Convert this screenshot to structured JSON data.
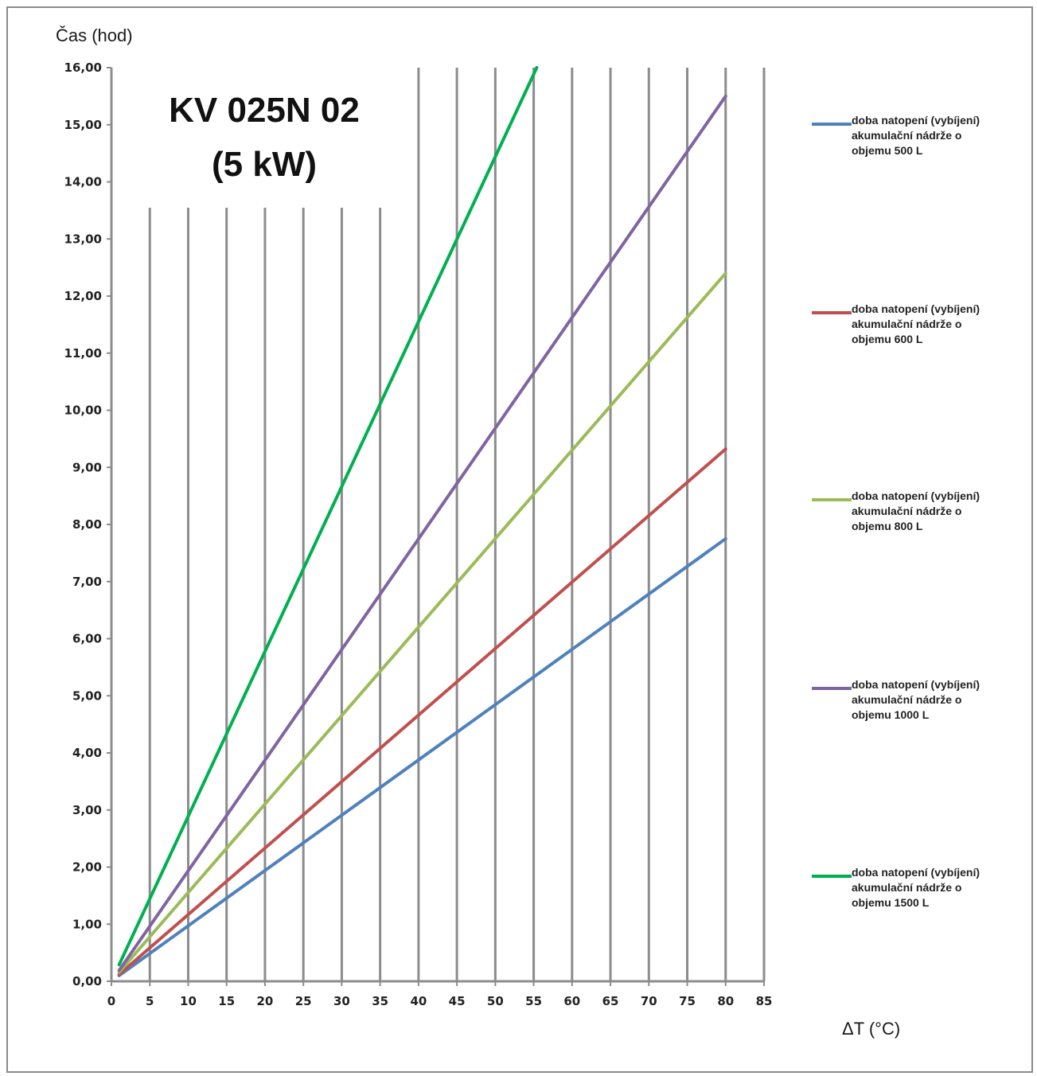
{
  "chart_data": {
    "type": "line",
    "title_lines": [
      "KV 025N 02",
      "(5 kW)"
    ],
    "ylabel": "Čas (hod)",
    "xlabel": "ΔT  (°C)",
    "xlim": [
      0,
      85
    ],
    "ylim": [
      0,
      16
    ],
    "x_ticks": [
      "0",
      "5",
      "10",
      "15",
      "20",
      "25",
      "30",
      "35",
      "40",
      "45",
      "50",
      "55",
      "60",
      "65",
      "70",
      "75",
      "80",
      "85"
    ],
    "y_ticks": [
      "0,00",
      "1,00",
      "2,00",
      "3,00",
      "4,00",
      "5,00",
      "6,00",
      "7,00",
      "8,00",
      "9,00",
      "10,00",
      "11,00",
      "12,00",
      "13,00",
      "14,00",
      "15,00",
      "16,00"
    ],
    "grid": "vertical",
    "legend_position": "right",
    "series": [
      {
        "name": [
          "doba natopení (vybíjení)",
          "akumulační nádrže o",
          "objemu 500 L"
        ],
        "color": "#4f81bd",
        "x": [
          1,
          80
        ],
        "y": [
          0.1,
          7.75
        ]
      },
      {
        "name": [
          "doba natopení (vybíjení)",
          "akumulační nádrže o",
          "objemu 600 L"
        ],
        "color": "#c0504d",
        "x": [
          1,
          80
        ],
        "y": [
          0.12,
          9.32
        ]
      },
      {
        "name": [
          "doba natopení (vybíjení)",
          "akumulační nádrže o",
          "objemu 800 L"
        ],
        "color": "#9bbb59",
        "x": [
          1,
          80
        ],
        "y": [
          0.16,
          12.4
        ]
      },
      {
        "name": [
          "doba natopení (vybíjení)",
          "akumulační nádrže o",
          "objemu 1000 L"
        ],
        "color": "#8064a2",
        "x": [
          1,
          80
        ],
        "y": [
          0.19,
          15.5
        ]
      },
      {
        "name": [
          "doba natopení (vybíjení)",
          "akumulační nádrže o",
          "objemu 1500 L"
        ],
        "color": "#00b050",
        "x": [
          1,
          55.4
        ],
        "y": [
          0.29,
          16.0
        ]
      }
    ]
  }
}
